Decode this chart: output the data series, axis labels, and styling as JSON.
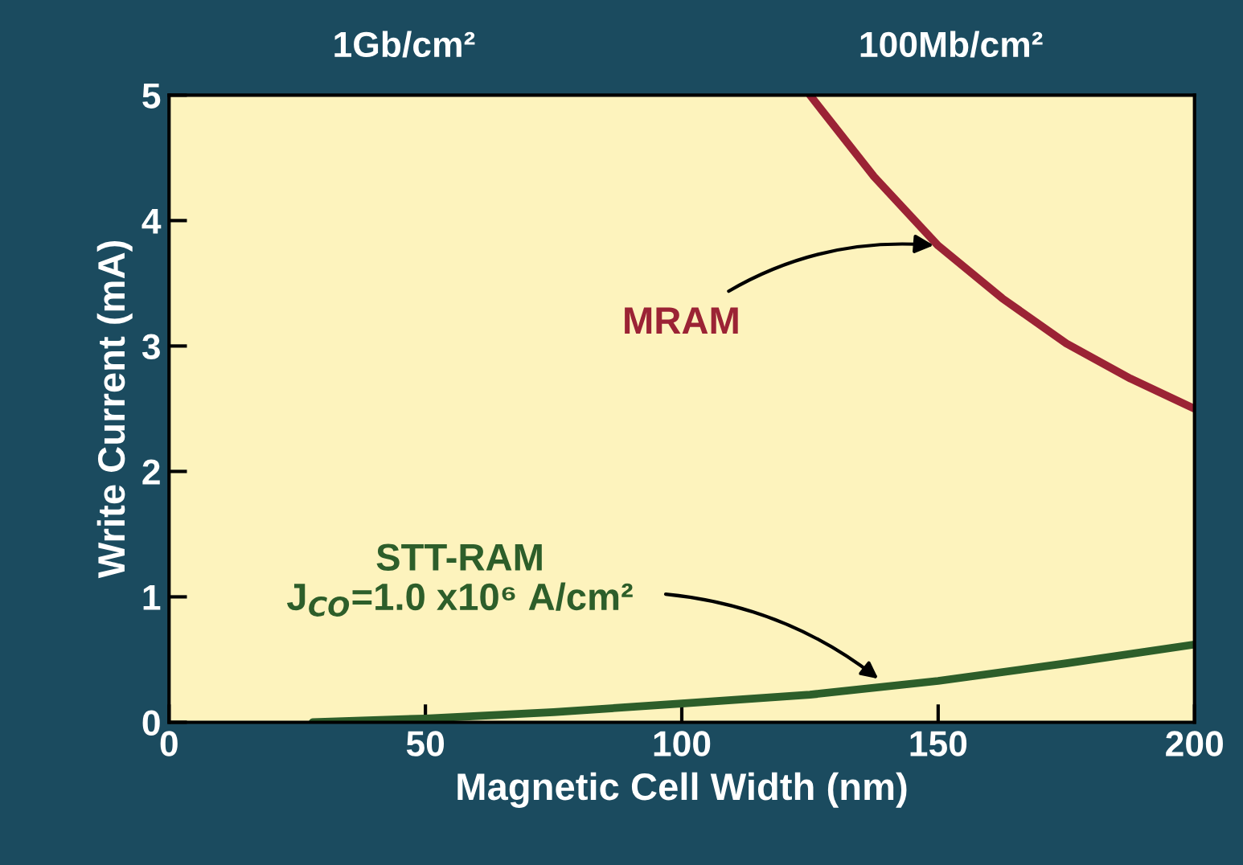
{
  "chart_data": {
    "type": "line",
    "xlabel": "Magnetic Cell Width (nm)",
    "ylabel": "Write Current (mA)",
    "xlim": [
      0,
      200
    ],
    "xticks": [
      0,
      50,
      100,
      150,
      200
    ],
    "ylim": [
      0,
      5
    ],
    "yticks": [
      0,
      1,
      2,
      3,
      4,
      5
    ],
    "grid": false,
    "legend": false,
    "marker": "none",
    "line_style": "solid",
    "series": [
      {
        "color": "#9b2335",
        "x": [
          125,
          137.5,
          150,
          162.5,
          175,
          187.5,
          200
        ],
        "values": [
          5,
          4.35,
          3.8,
          3.38,
          3.02,
          2.74,
          2.5
        ]
      },
      {
        "color": "#2d5e2a",
        "x": [
          28,
          50,
          75,
          100,
          125,
          150,
          175,
          200
        ],
        "values": [
          0,
          0.03,
          0.08,
          0.15,
          0.22,
          0.33,
          0.47,
          0.62
        ]
      }
    ],
    "annotations": [
      {
        "text": "MRAM",
        "x": 150,
        "y": 3.8
      },
      "STT-RAM",
      "J$_{CO}$=1.0 x10⁶ A/cm²",
      "1Gb/cm²",
      "100Mb/cm²"
    ]
  }
}
